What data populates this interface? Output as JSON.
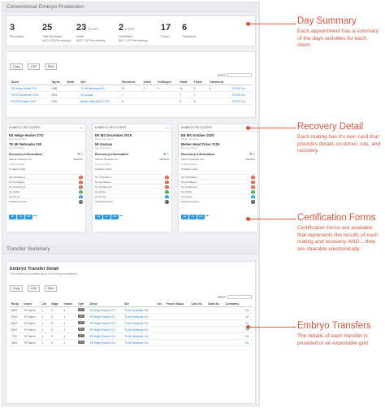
{
  "production": {
    "title": "Conventional Embryo Production",
    "stats": [
      {
        "value": "3",
        "pct": "",
        "label": "Recoveries",
        "sub": ""
      },
      {
        "value": "25",
        "pct": "",
        "label": "Total Recovered",
        "sub": "AVG: 8.33 Per recovery"
      },
      {
        "value": "23",
        "pct": "92.00%",
        "label": "Viable",
        "sub": "AVG: 7.67 Per recovery"
      },
      {
        "value": "2",
        "pct": "8.00%",
        "label": "Unfertilized",
        "sub": "AVG: 0.67 Per recovery"
      },
      {
        "value": "17",
        "pct": "",
        "label": "Frozen",
        "sub": ""
      },
      {
        "value": "6",
        "pct": "",
        "label": "Transferred",
        "sub": ""
      }
    ]
  },
  "summary_table": {
    "buttons": [
      "Copy",
      "CSV",
      "Print"
    ],
    "search_label": "Search:",
    "headers": [
      "Donor",
      "Tag No",
      "Breed",
      "Sire",
      "Recovered",
      "Unfert",
      "Fert/Degen",
      "Viable",
      "Frozen",
      "Transferred",
      ""
    ],
    "rows": [
      [
        "EE Helge Hosker 27U",
        "4456",
        "",
        "TK Mr Nebraska 100",
        "13",
        "2",
        "0",
        "11",
        "5",
        "6",
        "EE MS Oct"
      ],
      [
        "EE MS December 2019",
        "2019",
        "",
        "Mr Kansas",
        "7",
        "",
        "",
        "7",
        "7",
        "",
        "EE MS Oct"
      ],
      [
        "EE MS October 2020",
        "2020",
        "",
        "Bieber Heart Drive Y120",
        "5",
        "",
        "",
        "5",
        "5",
        "",
        "EE MS Oct"
      ]
    ]
  },
  "recovery_cards": [
    {
      "header": "EMBRYO RECOVERY",
      "donor": "EE Helge Hosker 27U",
      "donor_sub": "Donor Information",
      "sire": "TK Mr Nebraska 100",
      "sire_sub": "Sire Information",
      "section": "Recovery Information",
      "company": "Sdenar Software LLC",
      "date": "2022/9/1",
      "collected_by": "Collected Date",
      "protocol": "Ovulation Hugs",
      "results": [
        {
          "label": "No Unfertilized",
          "count": "2",
          "color": "#e0533d"
        },
        {
          "label": "No Fert/Degen",
          "count": "0",
          "color": "#e0533d"
        },
        {
          "label": "No Transferred",
          "count": "6",
          "color": "#e0533d"
        },
        {
          "label": "No Viable",
          "count": "11",
          "color": "#3aa655"
        },
        {
          "label": "No Frozen",
          "count": "5",
          "color": "#2e9be2"
        },
        {
          "label": "Total Recovered",
          "count": "13",
          "color": "#555555"
        }
      ],
      "forms": [
        "EB",
        "AC",
        "ABC"
      ]
    },
    {
      "header": "EMBRYO RECOVERY",
      "donor": "EE MS December 2019",
      "donor_sub": "Donor Information",
      "sire": "Mr Kansas",
      "sire_sub": "Sire Information",
      "section": "Recovery Information",
      "company": "Sdenar Software LLC",
      "date": "2022/9/1",
      "collected_by": "Collected Date",
      "protocol": "Ovulation Hugs",
      "results": [
        {
          "label": "No Unfertilized",
          "count": "0",
          "color": "#e0533d"
        },
        {
          "label": "No Fert/Degen",
          "count": "0",
          "color": "#e0533d"
        },
        {
          "label": "No Transferred",
          "count": "0",
          "color": "#e0533d"
        },
        {
          "label": "No Viable",
          "count": "7",
          "color": "#3aa655"
        },
        {
          "label": "No Frozen",
          "count": "7",
          "color": "#2e9be2"
        },
        {
          "label": "Total Recovered",
          "count": "7",
          "color": "#555555"
        }
      ],
      "forms": [
        "EB",
        "AC",
        "ABC"
      ]
    },
    {
      "header": "EMBRYO RECOVERY",
      "donor": "EE MS October 2020",
      "donor_sub": "Donor Information",
      "sire": "Bieber Heart Drive Y120",
      "sire_sub": "Sire Information",
      "section": "Recovery Information",
      "company": "Sdenar Software LLC",
      "date": "2022/9/1",
      "collected_by": "Collected Date",
      "protocol": "Ovulation Hugs",
      "results": [
        {
          "label": "No Unfertilized",
          "count": "0",
          "color": "#e0533d"
        },
        {
          "label": "No Fert/Degen",
          "count": "0",
          "color": "#e0533d"
        },
        {
          "label": "No Transferred",
          "count": "0",
          "color": "#e0533d"
        },
        {
          "label": "No Viable",
          "count": "5",
          "color": "#3aa655"
        },
        {
          "label": "No Frozen",
          "count": "5",
          "color": "#2e9be2"
        },
        {
          "label": "Total Recovered",
          "count": "5",
          "color": "#555555"
        }
      ],
      "forms": [
        "EB",
        "AC",
        "ABC"
      ]
    }
  ],
  "transfer": {
    "title": "Transfer Summary",
    "detail_title": "Embryo Transfer Detail",
    "detail_sub": "The following is a detailed report of all embryos transferred.",
    "buttons": [
      "Copy",
      "CSV",
      "Print"
    ],
    "search_label": "Search:",
    "headers": [
      "Recip",
      "Owner",
      "Cell",
      "Stage",
      "Grader",
      "Type",
      "Donor",
      "Sire",
      "Sex",
      "Frozen Status",
      "Conc No",
      "Straw No",
      "Comments",
      ""
    ],
    "rows": [
      [
        "8500",
        "TK Ranch",
        "1",
        "5",
        "1",
        "ET",
        "EE Helge Hosker 27U",
        "TK Mr Nebraska 100",
        "",
        "",
        "",
        "",
        "",
        "Ed"
      ],
      [
        "9215",
        "TK Ranch",
        "1",
        "5",
        "1",
        "ET",
        "EE Helge Hosker 27U",
        "TK Mr Nebraska 100",
        "",
        "",
        "",
        "",
        "",
        "Ed"
      ],
      [
        "6512",
        "TK Ranch",
        "1",
        "6",
        "1",
        "ET",
        "EE Helge Hosker 27U",
        "TK Mr Nebraska 100",
        "",
        "",
        "",
        "",
        "",
        "Ed"
      ],
      [
        "8102",
        "TK Ranch",
        "1",
        "5",
        "1",
        "ET",
        "EE Helge Hosker 27U",
        "TK Mr Nebraska 100",
        "",
        "",
        "",
        "",
        "",
        "Ed"
      ],
      [
        "7720",
        "TK Ranch",
        "1",
        "5",
        "1",
        "ET",
        "EE Helge Hosker 27U",
        "TK Mr Nebraska 100",
        "",
        "",
        "",
        "",
        "",
        "Ed"
      ],
      [
        "9044",
        "TK Ranch",
        "1",
        "5",
        "1",
        "ET",
        "EE Helge Hosker 27U",
        "TK Mr Nebraska 100",
        "",
        "",
        "",
        "",
        "",
        "Ed"
      ]
    ]
  },
  "callouts": [
    {
      "title": "Day Summary",
      "desc": "Each appointment has a summary of the days activities for each client."
    },
    {
      "title": "Recovery Detail",
      "desc": "Each mating has it's own card that provides details on donor, sire, and recovery."
    },
    {
      "title": "Certification Forms",
      "desc": "Certification forms are available that represents the results of each mating and recovery. AND... they are sharable electronically."
    },
    {
      "title": "Embryo Transfers",
      "desc": "The details of each transfer is provided in an exportable grid."
    }
  ],
  "colors": {
    "accent": "#e0533d",
    "link": "#2a7fd4",
    "form_button": "#2e9be2"
  }
}
